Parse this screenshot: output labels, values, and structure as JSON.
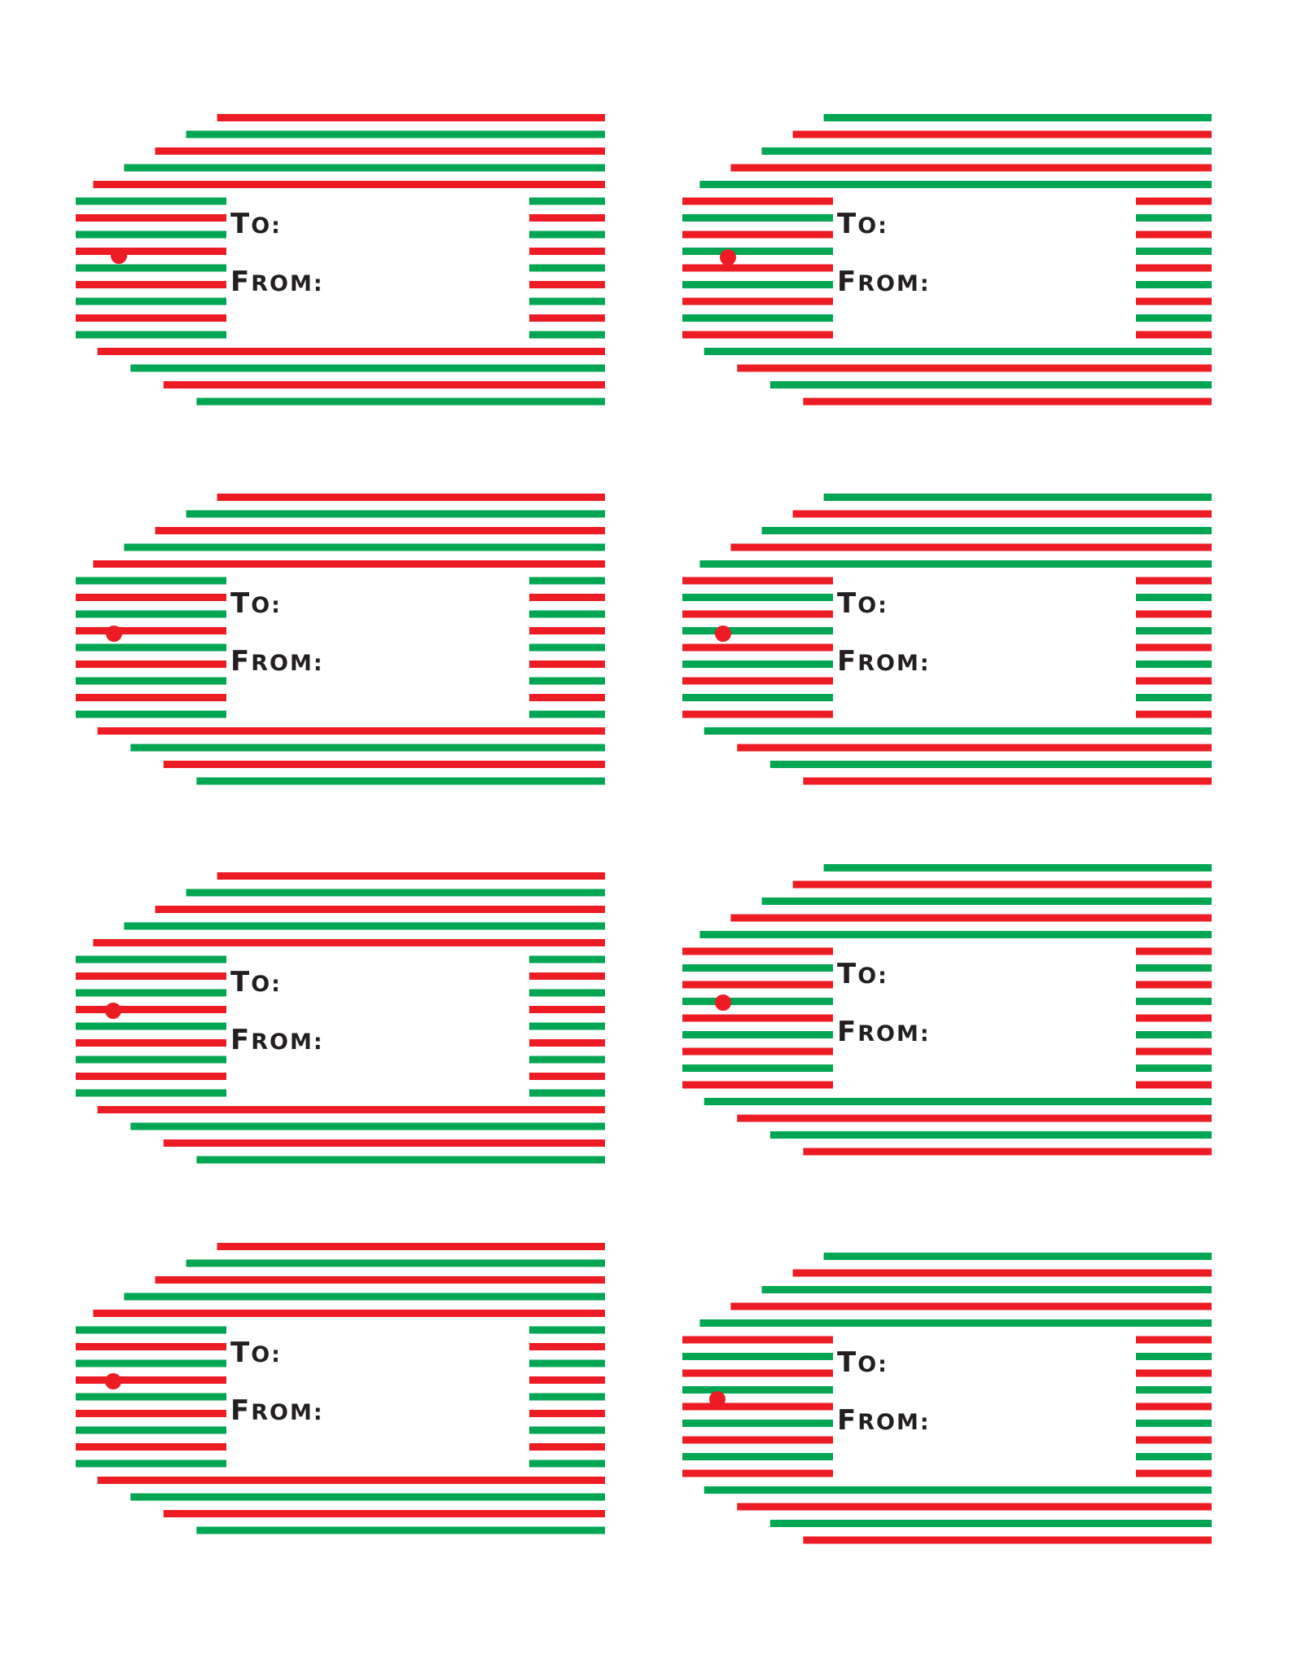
{
  "sheet": {
    "title": "",
    "tags": [
      {
        "to_label": "TO:",
        "from_label": "FROM:"
      },
      {
        "to_label": "TO:",
        "from_label": "FROM:"
      },
      {
        "to_label": "TO:",
        "from_label": "FROM:"
      },
      {
        "to_label": "TO:",
        "from_label": "FROM:"
      },
      {
        "to_label": "TO:",
        "from_label": "FROM:"
      },
      {
        "to_label": "TO:",
        "from_label": "FROM:"
      },
      {
        "to_label": "TO:",
        "from_label": "FROM:"
      },
      {
        "to_label": "TO:",
        "from_label": "FROM:"
      }
    ]
  },
  "colors": {
    "red": "#ed1c24",
    "green": "#00a651",
    "text": "#231f20",
    "background": "#ffffff"
  },
  "icons": {
    "hole": "hole-punch-icon"
  }
}
